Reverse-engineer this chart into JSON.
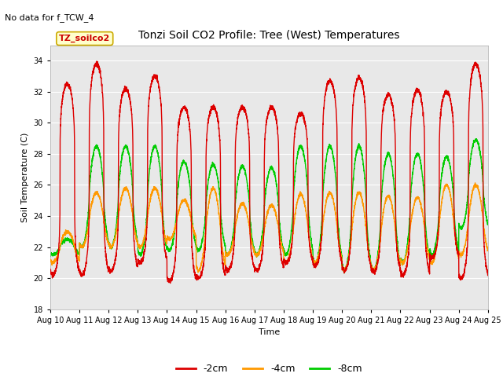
{
  "title": "Tonzi Soil CO2 Profile: Tree (West) Temperatures",
  "no_data_text": "No data for f_TCW_4",
  "ylabel": "Soil Temperature (C)",
  "xlabel": "Time",
  "ylim": [
    18,
    35
  ],
  "yticks": [
    18,
    20,
    22,
    24,
    26,
    28,
    30,
    32,
    34
  ],
  "xlim_start": 0,
  "xlim_end": 15,
  "xtick_labels": [
    "Aug 10",
    "Aug 11",
    "Aug 12",
    "Aug 13",
    "Aug 14",
    "Aug 15",
    "Aug 16",
    "Aug 17",
    "Aug 18",
    "Aug 19",
    "Aug 20",
    "Aug 21",
    "Aug 22",
    "Aug 23",
    "Aug 24",
    "Aug 25"
  ],
  "bg_color": "#e8e8e8",
  "fig_color": "#ffffff",
  "legend_label": "TZ_soilco2",
  "legend_box_color": "#ffffcc",
  "legend_box_edge": "#ccaa00",
  "series": [
    {
      "label": "-2cm",
      "color": "#dd0000"
    },
    {
      "label": "-4cm",
      "color": "#ff9900"
    },
    {
      "label": "-8cm",
      "color": "#00cc00"
    }
  ],
  "n_days": 15,
  "points_per_day": 288,
  "cm2_day_peaks": [
    32.5,
    33.8,
    32.2,
    33.0,
    31.0,
    31.0,
    31.0,
    31.0,
    30.6,
    32.7,
    32.9,
    31.8,
    32.1,
    32.0,
    33.8
  ],
  "cm2_day_mins": [
    20.2,
    20.2,
    20.5,
    21.0,
    19.8,
    20.0,
    20.5,
    20.5,
    21.0,
    20.8,
    20.5,
    20.4,
    20.2,
    21.3,
    20.0
  ],
  "cm4_day_peaks": [
    23.0,
    25.5,
    25.8,
    25.8,
    25.0,
    25.8,
    24.8,
    24.7,
    25.4,
    25.5,
    25.5,
    25.3,
    25.2,
    26.0,
    26.0
  ],
  "cm4_day_mins": [
    21.0,
    22.0,
    22.0,
    22.0,
    22.5,
    20.5,
    21.5,
    21.5,
    21.0,
    21.0,
    20.5,
    20.5,
    21.0,
    21.0,
    21.5
  ],
  "cm8_day_peaks": [
    22.5,
    28.5,
    28.5,
    28.5,
    27.5,
    27.3,
    27.2,
    27.1,
    28.5,
    28.5,
    28.5,
    28.0,
    28.0,
    27.8,
    28.9
  ],
  "cm8_day_mins": [
    21.5,
    22.0,
    22.0,
    21.5,
    21.8,
    21.8,
    21.5,
    21.5,
    21.5,
    21.0,
    20.5,
    20.5,
    21.0,
    21.5,
    23.2
  ],
  "peak_sharpness_red": 4.0,
  "peak_sharpness_green": 1.5,
  "peak_sharpness_orange": 1.2
}
